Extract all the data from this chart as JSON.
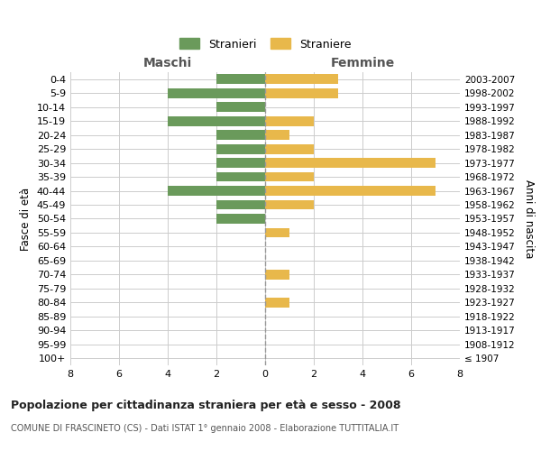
{
  "age_groups": [
    "100+",
    "95-99",
    "90-94",
    "85-89",
    "80-84",
    "75-79",
    "70-74",
    "65-69",
    "60-64",
    "55-59",
    "50-54",
    "45-49",
    "40-44",
    "35-39",
    "30-34",
    "25-29",
    "20-24",
    "15-19",
    "10-14",
    "5-9",
    "0-4"
  ],
  "birth_years": [
    "≤ 1907",
    "1908-1912",
    "1913-1917",
    "1918-1922",
    "1923-1927",
    "1928-1932",
    "1933-1937",
    "1938-1942",
    "1943-1947",
    "1948-1952",
    "1953-1957",
    "1958-1962",
    "1963-1967",
    "1968-1972",
    "1973-1977",
    "1978-1982",
    "1983-1987",
    "1988-1992",
    "1993-1997",
    "1998-2002",
    "2003-2007"
  ],
  "maschi": [
    0,
    0,
    0,
    0,
    0,
    0,
    0,
    0,
    0,
    0,
    2,
    2,
    4,
    2,
    2,
    2,
    2,
    4,
    2,
    4,
    2
  ],
  "femmine": [
    0,
    0,
    0,
    0,
    1,
    0,
    1,
    0,
    0,
    1,
    0,
    2,
    7,
    2,
    7,
    2,
    1,
    2,
    0,
    3,
    3
  ],
  "color_maschi": "#6a9a5b",
  "color_femmine": "#e8b84b",
  "title": "Popolazione per cittadinanza straniera per età e sesso - 2008",
  "subtitle": "COMUNE DI FRASCINETO (CS) - Dati ISTAT 1° gennaio 2008 - Elaborazione TUTTITALIA.IT",
  "legend_maschi": "Stranieri",
  "legend_femmine": "Straniere",
  "xlabel_left": "Maschi",
  "xlabel_right": "Femmine",
  "ylabel_left": "Fasce di età",
  "ylabel_right": "Anni di nascita",
  "xlim": 8,
  "bg_color": "#ffffff",
  "grid_color": "#cccccc"
}
